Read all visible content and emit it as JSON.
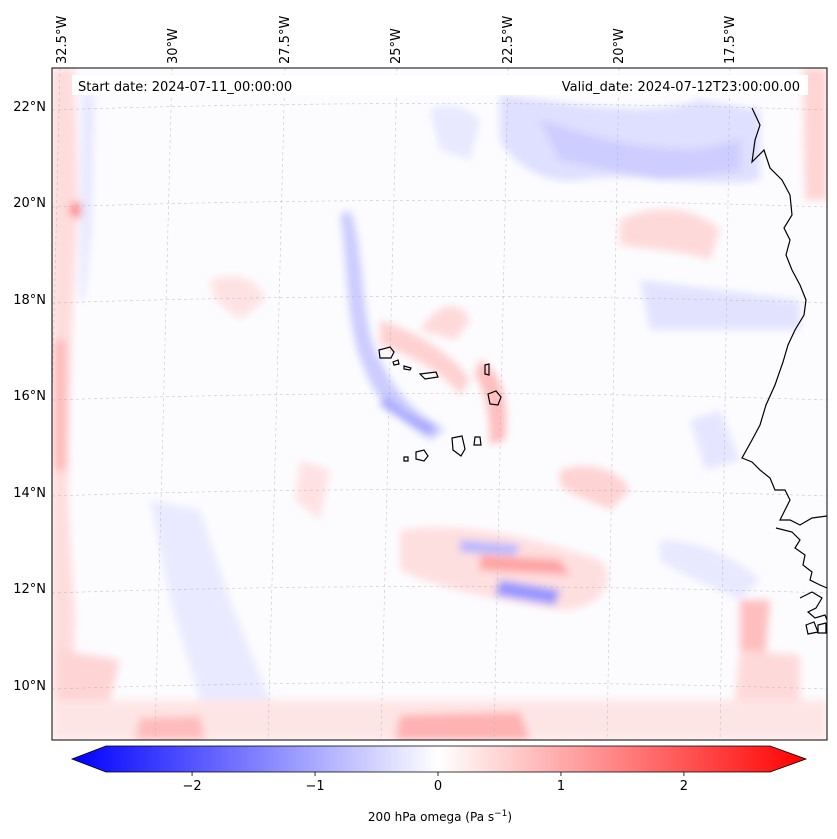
{
  "map": {
    "start_date_label": "Start date: 2024-07-11_00:00:00",
    "valid_date_label": "Valid_date: 2024-07-12T23:00:00.00",
    "lon_labels": [
      "32.5°W",
      "30°W",
      "27.5°W",
      "25°W",
      "22.5°W",
      "20°W",
      "17.5°W"
    ],
    "lat_labels": [
      "22°N",
      "20°N",
      "18°N",
      "16°N",
      "14°N",
      "12°N",
      "10°N"
    ],
    "extent": {
      "lon_min": -33.1,
      "lon_max": -16.0,
      "lat_min": 8.8,
      "lat_max": 22.8
    },
    "features": [
      "Cape Verde islands",
      "West African coastline"
    ]
  },
  "colorbar": {
    "label": "200 hPa omega (Pa s",
    "label_superscript": "−1",
    "label_close": ")",
    "ticks": [
      "−2",
      "−1",
      "0",
      "1",
      "2"
    ],
    "tick_values": [
      -2,
      -1,
      0,
      1,
      2
    ],
    "range": [
      -2.7,
      2.7
    ],
    "colormap": "bwr",
    "colors": {
      "low": "#0000ff",
      "mid": "#ffffff",
      "high": "#ff0000"
    }
  }
}
